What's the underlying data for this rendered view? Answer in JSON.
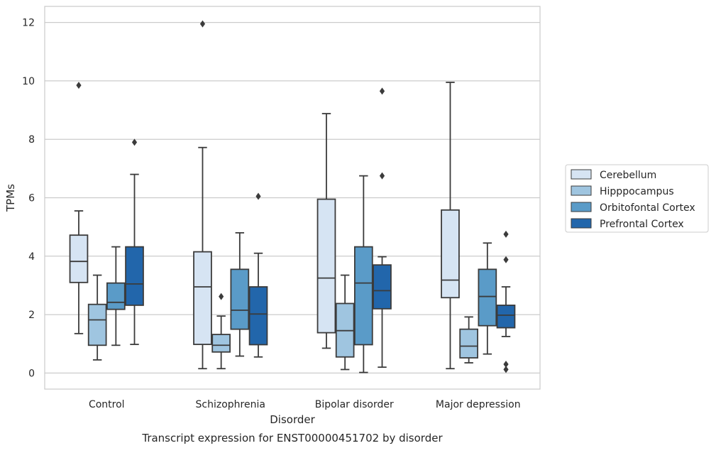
{
  "chart_data": {
    "type": "box",
    "caption": "Transcript expression for ENST00000451702 by disorder",
    "xlabel": "Disorder",
    "ylabel": "TPMs",
    "ylim": [
      -0.55,
      12.55
    ],
    "yticks": [
      0,
      2,
      4,
      6,
      8,
      10,
      12
    ],
    "grid": true,
    "legend_position": "right",
    "categories": [
      "Control",
      "Schizophrenia",
      "Bipolar disorder",
      "Major depression"
    ],
    "series": [
      {
        "name": "Cerebellum",
        "color": "#d6e4f3",
        "boxes": [
          {
            "whislo": 1.35,
            "q1": 3.1,
            "med": 3.82,
            "q3": 4.72,
            "whishi": 5.55,
            "fliers": [
              9.85
            ]
          },
          {
            "whislo": 0.15,
            "q1": 0.98,
            "med": 2.95,
            "q3": 4.15,
            "whishi": 7.72,
            "fliers": [
              11.95
            ]
          },
          {
            "whislo": 0.85,
            "q1": 1.38,
            "med": 3.25,
            "q3": 5.95,
            "whishi": 8.88,
            "fliers": []
          },
          {
            "whislo": 0.15,
            "q1": 2.58,
            "med": 3.18,
            "q3": 5.58,
            "whishi": 9.95,
            "fliers": []
          }
        ]
      },
      {
        "name": "Hipppocampus",
        "color": "#9fc5e0",
        "boxes": [
          {
            "whislo": 0.45,
            "q1": 0.95,
            "med": 1.82,
            "q3": 2.35,
            "whishi": 3.35,
            "fliers": []
          },
          {
            "whislo": 0.15,
            "q1": 0.72,
            "med": 0.95,
            "q3": 1.32,
            "whishi": 1.95,
            "fliers": [
              2.62
            ]
          },
          {
            "whislo": 0.12,
            "q1": 0.55,
            "med": 1.45,
            "q3": 2.38,
            "whishi": 3.35,
            "fliers": []
          },
          {
            "whislo": 0.35,
            "q1": 0.52,
            "med": 0.92,
            "q3": 1.5,
            "whishi": 1.92,
            "fliers": []
          }
        ]
      },
      {
        "name": "Orbitofontal Cortex",
        "color": "#5a9bc8",
        "boxes": [
          {
            "whislo": 0.95,
            "q1": 2.18,
            "med": 2.42,
            "q3": 3.08,
            "whishi": 4.32,
            "fliers": []
          },
          {
            "whislo": 0.58,
            "q1": 1.5,
            "med": 2.15,
            "q3": 3.55,
            "whishi": 4.8,
            "fliers": []
          },
          {
            "whislo": 0.02,
            "q1": 0.97,
            "med": 3.08,
            "q3": 4.32,
            "whishi": 6.75,
            "fliers": []
          },
          {
            "whislo": 0.65,
            "q1": 1.62,
            "med": 2.62,
            "q3": 3.55,
            "whishi": 4.45,
            "fliers": []
          }
        ]
      },
      {
        "name": "Prefrontal Cortex",
        "color": "#2266ab",
        "boxes": [
          {
            "whislo": 0.98,
            "q1": 2.32,
            "med": 3.05,
            "q3": 4.32,
            "whishi": 6.8,
            "fliers": [
              7.9
            ]
          },
          {
            "whislo": 0.55,
            "q1": 0.97,
            "med": 2.02,
            "q3": 2.95,
            "whishi": 4.1,
            "fliers": [
              6.05
            ]
          },
          {
            "whislo": 0.2,
            "q1": 2.2,
            "med": 2.82,
            "q3": 3.7,
            "whishi": 3.98,
            "fliers": [
              6.75,
              9.65
            ]
          },
          {
            "whislo": 1.25,
            "q1": 1.55,
            "med": 1.98,
            "q3": 2.32,
            "whishi": 2.95,
            "fliers": [
              0.12,
              0.3,
              3.88,
              4.75
            ]
          }
        ]
      }
    ]
  }
}
